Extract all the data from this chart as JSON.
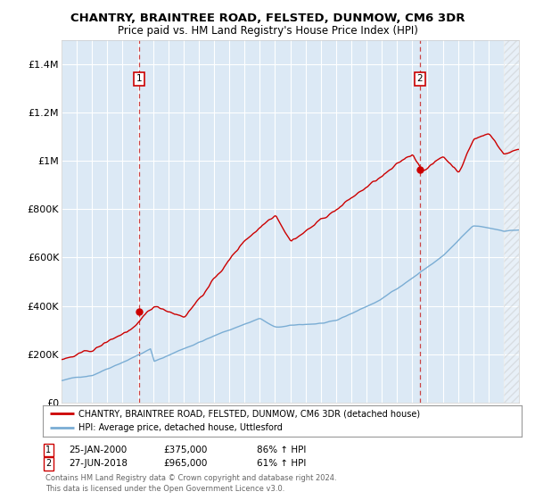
{
  "title": "CHANTRY, BRAINTREE ROAD, FELSTED, DUNMOW, CM6 3DR",
  "subtitle": "Price paid vs. HM Land Registry's House Price Index (HPI)",
  "ylim": [
    0,
    1500000
  ],
  "yticks": [
    0,
    200000,
    400000,
    600000,
    800000,
    1000000,
    1200000,
    1400000
  ],
  "ytick_labels": [
    "£0",
    "£200K",
    "£400K",
    "£600K",
    "£800K",
    "£1M",
    "£1.2M",
    "£1.4M"
  ],
  "plot_bg": "#dce9f5",
  "grid_color": "#ffffff",
  "legend_label_red": "CHANTRY, BRAINTREE ROAD, FELSTED, DUNMOW, CM6 3DR (detached house)",
  "legend_label_blue": "HPI: Average price, detached house, Uttlesford",
  "footer": "Contains HM Land Registry data © Crown copyright and database right 2024.\nThis data is licensed under the Open Government Licence v3.0.",
  "red_color": "#cc0000",
  "blue_color": "#7aadd4",
  "marker1_x": 2000.07,
  "marker1_y": 375000,
  "marker2_x": 2018.5,
  "marker2_y": 965000,
  "xmin": 1995,
  "xmax": 2025
}
